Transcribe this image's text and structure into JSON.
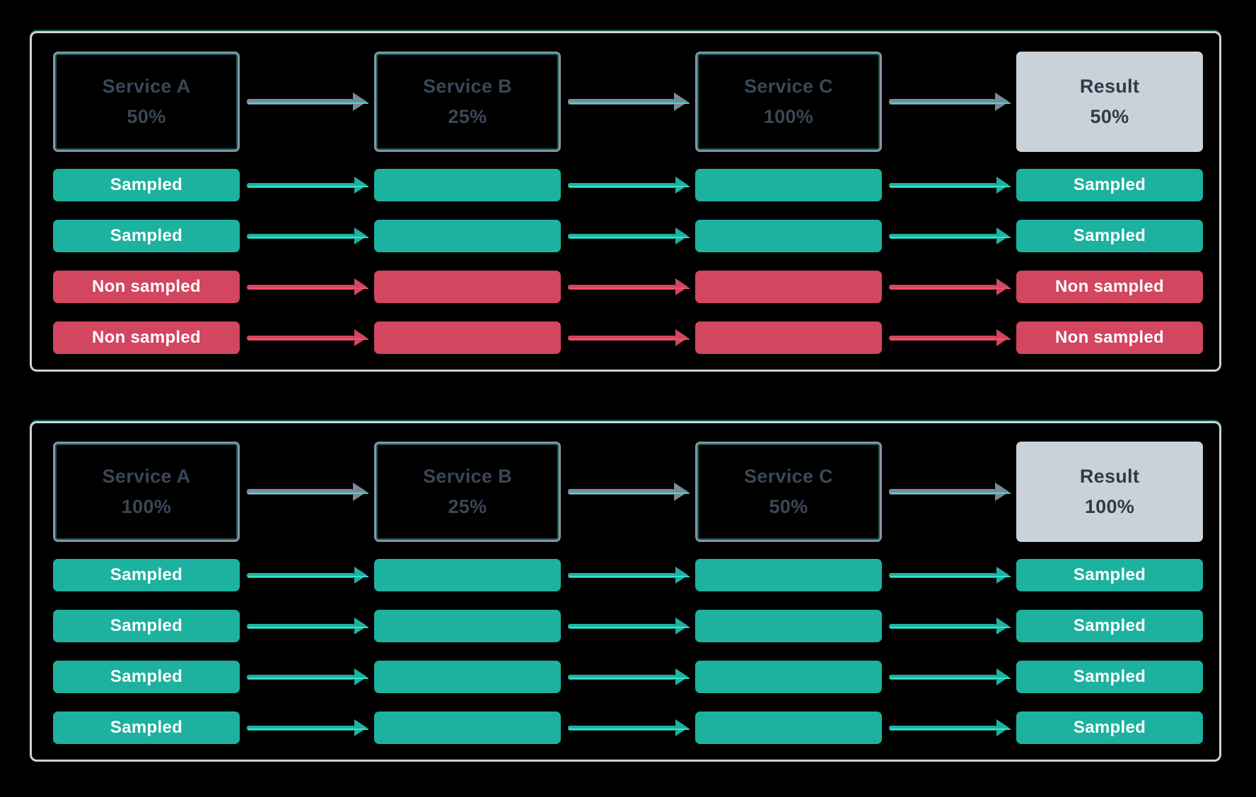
{
  "colors": {
    "background": "#000000",
    "panel_border": "#CBD4DC",
    "service_border": "#8694A4",
    "service_text": "#3A4756",
    "accent_cyan": "#36E2CE",
    "sampled": "#1DB2A0",
    "non_sampled": "#D2465F",
    "non_sampled_accent": "#F2506A",
    "result_bg": "#C9D2D9",
    "result_text": "#2E3B49",
    "arrow_gray": "#7B8A99",
    "row_text": "#FFFFFF"
  },
  "panels": [
    {
      "services": [
        {
          "name": "Service A",
          "rate": "50%"
        },
        {
          "name": "Service B",
          "rate": "25%"
        },
        {
          "name": "Service C",
          "rate": "100%"
        }
      ],
      "result": {
        "name": "Result",
        "rate": "50%"
      },
      "traces": [
        {
          "label": "Sampled",
          "status": "sampled"
        },
        {
          "label": "Sampled",
          "status": "sampled"
        },
        {
          "label": "Non sampled",
          "status": "non-sampled"
        },
        {
          "label": "Non sampled",
          "status": "non-sampled"
        }
      ]
    },
    {
      "services": [
        {
          "name": "Service A",
          "rate": "100%"
        },
        {
          "name": "Service B",
          "rate": "25%"
        },
        {
          "name": "Service C",
          "rate": "50%"
        }
      ],
      "result": {
        "name": "Result",
        "rate": "100%"
      },
      "traces": [
        {
          "label": "Sampled",
          "status": "sampled"
        },
        {
          "label": "Sampled",
          "status": "sampled"
        },
        {
          "label": "Sampled",
          "status": "sampled"
        },
        {
          "label": "Sampled",
          "status": "sampled"
        }
      ]
    }
  ]
}
